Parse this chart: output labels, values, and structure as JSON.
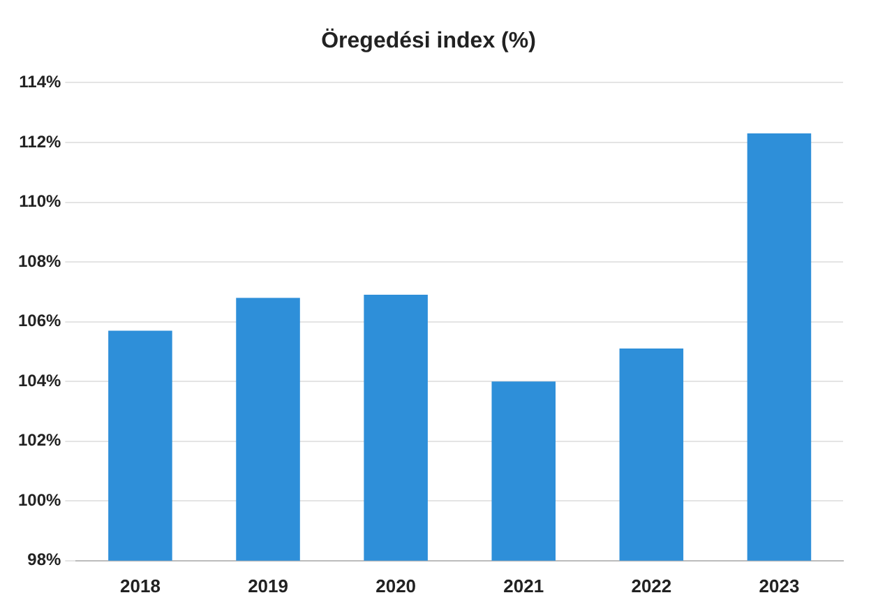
{
  "chart_data": {
    "type": "bar",
    "title": "Öregedési index (%)",
    "categories": [
      "2018",
      "2019",
      "2020",
      "2021",
      "2022",
      "2023"
    ],
    "values": [
      105.7,
      106.8,
      106.9,
      104.0,
      105.1,
      112.3
    ],
    "color": "#2e8fd9",
    "ylim": [
      98,
      114
    ],
    "yticks": [
      {
        "value": 98,
        "label": "98%"
      },
      {
        "value": 100,
        "label": "100%"
      },
      {
        "value": 102,
        "label": "102%"
      },
      {
        "value": 104,
        "label": "104%"
      },
      {
        "value": 106,
        "label": "106%"
      },
      {
        "value": 108,
        "label": "108%"
      },
      {
        "value": 110,
        "label": "110%"
      },
      {
        "value": 112,
        "label": "112%"
      },
      {
        "value": 114,
        "label": "114%"
      }
    ],
    "grid": "y"
  }
}
